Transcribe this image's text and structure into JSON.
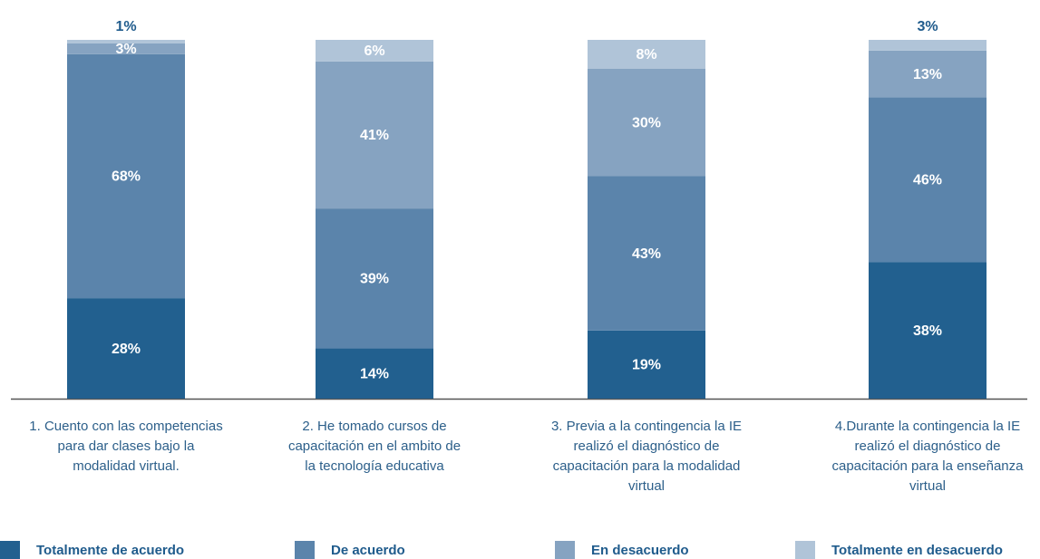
{
  "chart_data": {
    "type": "stacked_bar",
    "categories": [
      "1. Cuento con las competencias\npara dar clases bajo la\nmodalidad virtual.",
      "2. He tomado cursos de\ncapacitación en el ambito de\nla tecnología educativa",
      "3. Previa a la contingencia la IE\nrealizó el diagnóstico de\ncapacitación para la modalidad\nvirtual",
      "4.Durante la contingencia la IE\nrealizó el diagnóstico de\ncapacitación para la enseñanza\nvirtual"
    ],
    "ylim": [
      0,
      100
    ],
    "series": [
      {
        "name": "Totalmente de acuerdo",
        "color": "#22608f",
        "values": [
          28,
          14,
          19,
          38
        ],
        "value_labels": [
          "28%",
          "14%",
          "19%",
          "38%"
        ]
      },
      {
        "name": "De acuerdo",
        "color": "#5b84ab",
        "values": [
          68,
          39,
          43,
          46
        ],
        "value_labels": [
          "68%",
          "39%",
          "43%",
          "46%"
        ]
      },
      {
        "name": "En desacuerdo",
        "color": "#86a3c1",
        "values": [
          3,
          41,
          30,
          13
        ],
        "value_labels": [
          "3%",
          "41%",
          "30%",
          "13%"
        ]
      },
      {
        "name": "Totalmente en desacuerdo",
        "color": "#b0c4d8",
        "values": [
          1,
          6,
          8,
          3
        ],
        "value_labels": [
          "1%",
          "6%",
          "8%",
          "3%"
        ]
      }
    ]
  }
}
